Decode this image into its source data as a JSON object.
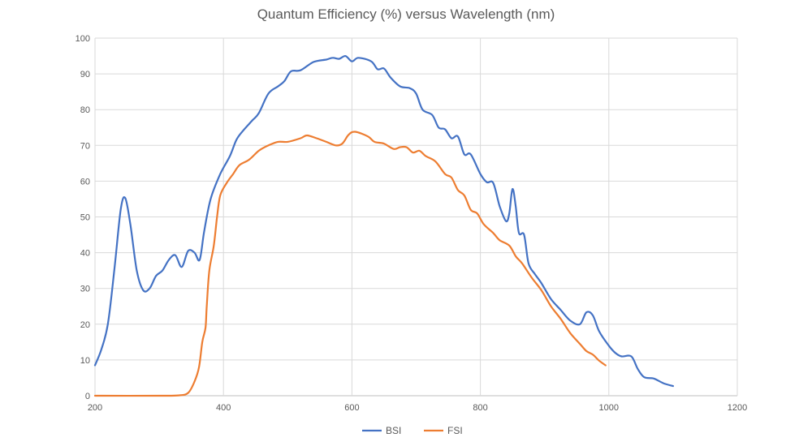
{
  "chart_data": {
    "type": "line",
    "title": "Quantum Efficiency (%) versus Wavelength (nm)",
    "xlabel": "",
    "ylabel": "",
    "xlim": [
      200,
      1200
    ],
    "ylim": [
      0,
      100
    ],
    "x_ticks": [
      200,
      400,
      600,
      800,
      1000,
      1200
    ],
    "y_ticks": [
      0,
      10,
      20,
      30,
      40,
      50,
      60,
      70,
      80,
      90,
      100
    ],
    "grid": true,
    "legend_position": "bottom",
    "series": [
      {
        "name": "BSI",
        "color": "#4472C4",
        "points": [
          [
            200,
            8.5
          ],
          [
            210,
            13
          ],
          [
            220,
            20
          ],
          [
            230,
            35
          ],
          [
            240,
            52
          ],
          [
            247,
            55.3
          ],
          [
            255,
            48
          ],
          [
            265,
            35
          ],
          [
            275,
            29.5
          ],
          [
            285,
            30
          ],
          [
            295,
            33.5
          ],
          [
            305,
            35
          ],
          [
            315,
            38
          ],
          [
            325,
            39.3
          ],
          [
            335,
            36
          ],
          [
            345,
            40.5
          ],
          [
            355,
            40
          ],
          [
            363,
            38
          ],
          [
            370,
            46
          ],
          [
            380,
            55
          ],
          [
            395,
            62
          ],
          [
            410,
            67
          ],
          [
            420,
            71.5
          ],
          [
            430,
            74
          ],
          [
            445,
            77
          ],
          [
            455,
            79
          ],
          [
            470,
            84.5
          ],
          [
            485,
            86.5
          ],
          [
            495,
            88
          ],
          [
            505,
            90.7
          ],
          [
            520,
            91
          ],
          [
            540,
            93.3
          ],
          [
            560,
            94
          ],
          [
            570,
            94.5
          ],
          [
            580,
            94.2
          ],
          [
            590,
            95
          ],
          [
            600,
            93.5
          ],
          [
            610,
            94.5
          ],
          [
            630,
            93.5
          ],
          [
            640,
            91.3
          ],
          [
            650,
            91.5
          ],
          [
            660,
            89
          ],
          [
            675,
            86.5
          ],
          [
            690,
            86
          ],
          [
            700,
            84.5
          ],
          [
            710,
            80
          ],
          [
            725,
            78.5
          ],
          [
            735,
            75
          ],
          [
            745,
            74.5
          ],
          [
            755,
            72
          ],
          [
            765,
            72.5
          ],
          [
            775,
            67.5
          ],
          [
            785,
            67.5
          ],
          [
            800,
            62
          ],
          [
            810,
            59.7
          ],
          [
            820,
            59.5
          ],
          [
            830,
            53
          ],
          [
            840,
            48.8
          ],
          [
            845,
            51
          ],
          [
            850,
            57.8
          ],
          [
            855,
            53
          ],
          [
            860,
            45.5
          ],
          [
            868,
            45
          ],
          [
            875,
            37
          ],
          [
            885,
            34
          ],
          [
            895,
            31.5
          ],
          [
            910,
            27
          ],
          [
            925,
            24
          ],
          [
            940,
            21
          ],
          [
            955,
            20
          ],
          [
            965,
            23.3
          ],
          [
            975,
            22.5
          ],
          [
            985,
            18
          ],
          [
            1000,
            14
          ],
          [
            1010,
            12
          ],
          [
            1020,
            11
          ],
          [
            1035,
            11
          ],
          [
            1045,
            7.5
          ],
          [
            1055,
            5.2
          ],
          [
            1070,
            4.8
          ],
          [
            1085,
            3.5
          ],
          [
            1100,
            2.7
          ]
        ]
      },
      {
        "name": "FSI",
        "color": "#ED7D31",
        "points": [
          [
            200,
            0
          ],
          [
            300,
            0
          ],
          [
            330,
            0.1
          ],
          [
            345,
            0.8
          ],
          [
            355,
            4
          ],
          [
            362,
            8
          ],
          [
            367,
            15
          ],
          [
            372,
            19
          ],
          [
            374,
            25
          ],
          [
            378,
            35
          ],
          [
            385,
            42
          ],
          [
            390,
            50
          ],
          [
            395,
            56
          ],
          [
            405,
            59.5
          ],
          [
            415,
            62
          ],
          [
            425,
            64.5
          ],
          [
            440,
            66
          ],
          [
            455,
            68.5
          ],
          [
            470,
            70
          ],
          [
            485,
            71
          ],
          [
            500,
            71
          ],
          [
            520,
            72
          ],
          [
            530,
            72.8
          ],
          [
            545,
            72
          ],
          [
            560,
            71
          ],
          [
            575,
            70
          ],
          [
            585,
            70.5
          ],
          [
            595,
            73
          ],
          [
            605,
            73.8
          ],
          [
            625,
            72.5
          ],
          [
            635,
            71
          ],
          [
            650,
            70.5
          ],
          [
            665,
            69
          ],
          [
            675,
            69.5
          ],
          [
            685,
            69.5
          ],
          [
            695,
            68
          ],
          [
            705,
            68.5
          ],
          [
            715,
            67
          ],
          [
            730,
            65.5
          ],
          [
            745,
            62
          ],
          [
            755,
            61
          ],
          [
            765,
            57.5
          ],
          [
            775,
            56
          ],
          [
            785,
            52
          ],
          [
            795,
            51
          ],
          [
            805,
            48
          ],
          [
            820,
            45.5
          ],
          [
            830,
            43.5
          ],
          [
            845,
            42
          ],
          [
            855,
            39
          ],
          [
            865,
            37
          ],
          [
            880,
            33
          ],
          [
            895,
            29.5
          ],
          [
            910,
            25
          ],
          [
            925,
            21.5
          ],
          [
            940,
            17.5
          ],
          [
            955,
            14.5
          ],
          [
            965,
            12.5
          ],
          [
            975,
            11.5
          ],
          [
            985,
            9.8
          ],
          [
            995,
            8.5
          ]
        ]
      }
    ]
  }
}
